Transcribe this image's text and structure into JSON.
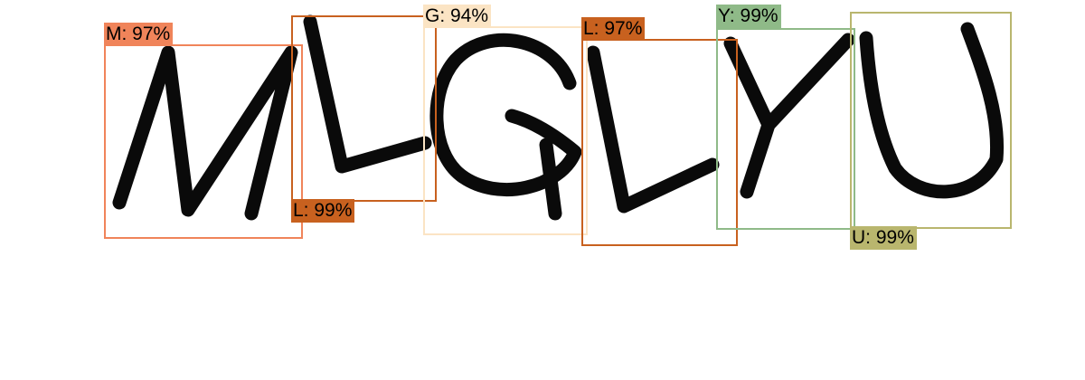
{
  "detections": [
    {
      "char": "M",
      "score": "97%",
      "color": "#f0845a"
    },
    {
      "char": "L",
      "score": "99%",
      "color": "#c8611f"
    },
    {
      "char": "G",
      "score": "94%",
      "color": "#fbe4c4"
    },
    {
      "char": "L",
      "score": "97%",
      "color": "#c8611f"
    },
    {
      "char": "Y",
      "score": "99%",
      "color": "#8fba88"
    },
    {
      "char": "U",
      "score": "99%",
      "color": "#b9b66e"
    }
  ],
  "labels": [
    "M: 97%",
    "L: 99%",
    "G: 94%",
    "L: 97%",
    "Y: 99%",
    "U: 99%"
  ]
}
